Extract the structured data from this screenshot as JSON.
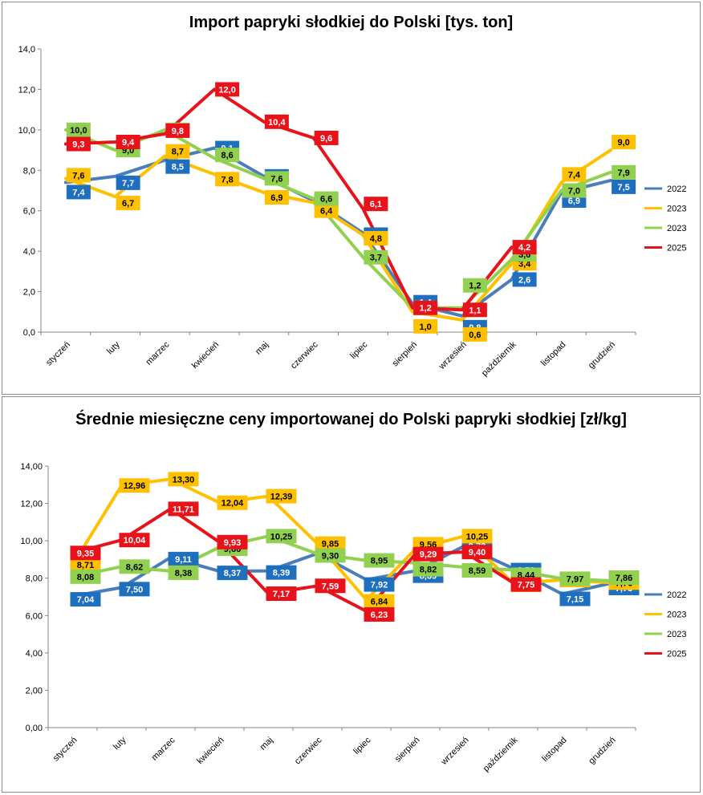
{
  "colors": {
    "s2022": "#4a7ebb",
    "s2023a": "#ffc000",
    "s2023b": "#92d050",
    "s2025": "#e8121b",
    "label_box_2022": "#1f6fbf",
    "label_box_2023a": "#ffc000",
    "label_box_2023b": "#92d050",
    "label_box_2025": "#e8121b",
    "grid": "#a6a6a6"
  },
  "chart_data": [
    {
      "type": "line",
      "title": "Import papryki słodkiej do Polski [tys. ton]",
      "categories": [
        "styczeń",
        "luty",
        "marzec",
        "kwiecień",
        "maj",
        "czerwiec",
        "lipiec",
        "sierpień",
        "wrzesień",
        "październik",
        "listopad",
        "grudzień"
      ],
      "ylim": [
        0,
        14
      ],
      "yticks": [
        "0,0",
        "2,0",
        "4,0",
        "6,0",
        "8,0",
        "10,0",
        "12,0",
        "14,0"
      ],
      "grid": false,
      "legend": "right",
      "series": [
        {
          "name": "2022",
          "values": [
            7.4,
            7.7,
            8.5,
            9.1,
            7.7,
            6.5,
            4.9,
            1.4,
            0.8,
            2.6,
            6.9,
            7.5
          ],
          "labels": [
            "7,4",
            "7,7",
            "8,5",
            "9,1",
            "7,7",
            "6,5",
            "4,9",
            "1,4",
            "0,8",
            "2,6",
            "6,9",
            "7,5"
          ]
        },
        {
          "name": "2023",
          "values": [
            7.6,
            6.7,
            8.7,
            7.8,
            6.9,
            6.4,
            4.8,
            1.0,
            0.6,
            3.4,
            7.4,
            9.0
          ],
          "labels": [
            "7,6",
            "6,7",
            "8,7",
            "7,8",
            "6,9",
            "6,4",
            "4,8",
            "1,0",
            "0,6",
            "3,4",
            "7,4",
            "9,0"
          ]
        },
        {
          "name": "2023",
          "values": [
            10.0,
            9.0,
            10.0,
            8.6,
            7.6,
            6.6,
            3.7,
            1.2,
            1.2,
            3.6,
            7.0,
            7.9
          ],
          "labels": [
            "10,0",
            "9,0",
            "10,0",
            "8,6",
            "7,6",
            "6,6",
            "3,7",
            "1,2",
            "1,2",
            "3,6",
            "7,0",
            "7,9"
          ]
        },
        {
          "name": "2025",
          "values": [
            9.3,
            9.4,
            9.8,
            12.0,
            10.4,
            9.6,
            6.1,
            1.2,
            1.1,
            4.2,
            null,
            null
          ],
          "labels": [
            "9,3",
            "9,4",
            "9,8",
            "12,0",
            "10,4",
            "9,6",
            "6,1",
            "1,2",
            "1,1",
            "4,2",
            "",
            ""
          ]
        }
      ]
    },
    {
      "type": "line",
      "title": "Średnie miesięczne ceny importowanej do Polski papryki słodkiej [zł/kg]",
      "categories": [
        "styczeń",
        "luty",
        "marzec",
        "kwiecień",
        "maj",
        "czerwiec",
        "lipiec",
        "sierpień",
        "wrzesień",
        "październik",
        "listopad",
        "grudzień"
      ],
      "ylim": [
        0,
        14
      ],
      "yticks": [
        "0,00",
        "2,00",
        "4,00",
        "6,00",
        "8,00",
        "10,00",
        "12,00",
        "14,00"
      ],
      "grid": false,
      "legend": "right",
      "series": [
        {
          "name": "2022",
          "values": [
            7.04,
            7.5,
            9.11,
            8.37,
            8.39,
            9.32,
            7.92,
            8.39,
            9.72,
            8.52,
            7.15,
            7.73
          ],
          "labels": [
            "7,04",
            "7,50",
            "9,11",
            "8,37",
            "8,39",
            "9,32",
            "7,92",
            "8,39",
            "9,72",
            "8,52",
            "7,15",
            "7,73"
          ]
        },
        {
          "name": "2023",
          "values": [
            8.71,
            12.96,
            13.3,
            12.04,
            12.39,
            9.85,
            6.84,
            9.56,
            10.25,
            7.73,
            7.9,
            7.76
          ],
          "labels": [
            "8,71",
            "12,96",
            "13,30",
            "12,04",
            "12,39",
            "9,85",
            "6,84",
            "9,56",
            "10,25",
            "7,73",
            "7,90",
            "7,76"
          ]
        },
        {
          "name": "2023",
          "values": [
            8.08,
            8.62,
            8.38,
            9.66,
            10.25,
            9.3,
            8.95,
            8.82,
            8.59,
            8.44,
            7.97,
            7.86
          ],
          "labels": [
            "8,08",
            "8,62",
            "8,38",
            "9,66",
            "10,25",
            "9,30",
            "8,95",
            "8,82",
            "8,59",
            "8,44",
            "7,97",
            "7,86"
          ]
        },
        {
          "name": "2025",
          "values": [
            9.35,
            10.04,
            11.71,
            9.93,
            7.17,
            7.59,
            6.23,
            9.29,
            9.4,
            7.75,
            null,
            null
          ],
          "labels": [
            "9,35",
            "10,04",
            "11,71",
            "9,93",
            "7,17",
            "7,59",
            "6,23",
            "9,29",
            "9,40",
            "7,75",
            "",
            ""
          ]
        }
      ]
    }
  ]
}
